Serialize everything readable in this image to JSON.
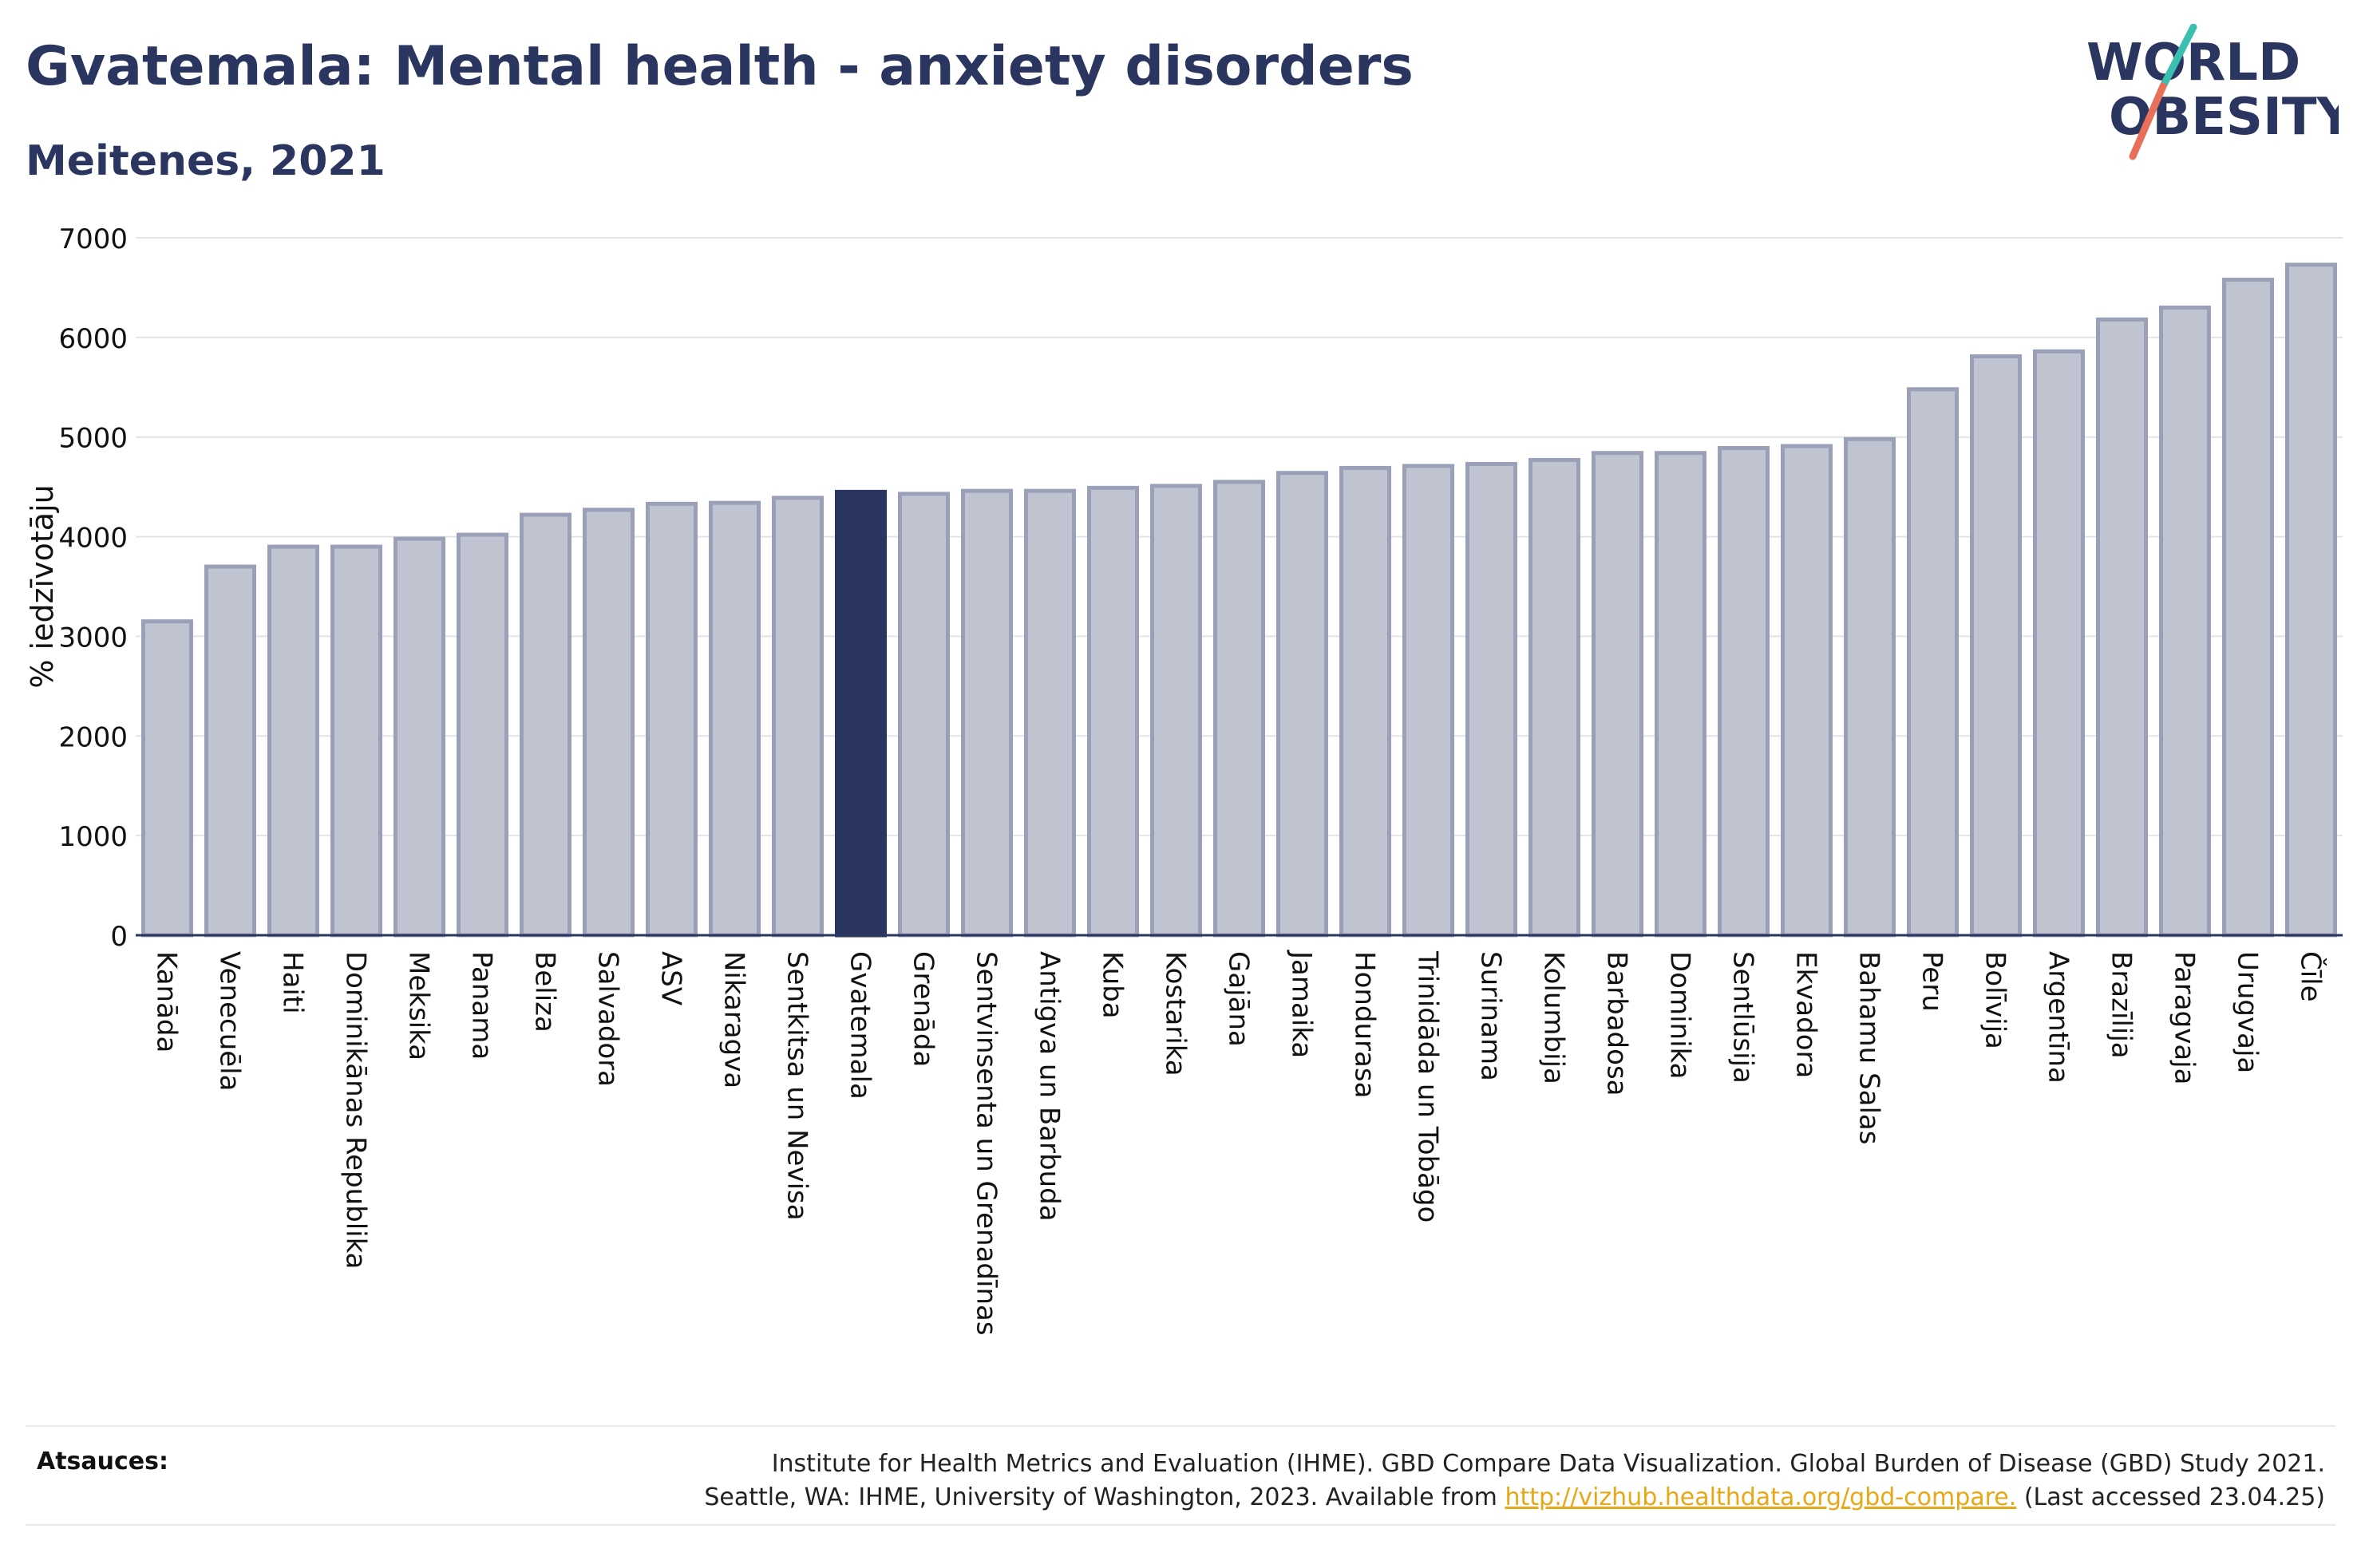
{
  "header": {
    "title": "Gvatemala: Mental health - anxiety disorders",
    "subtitle": "Meitenes, 2021"
  },
  "logo": {
    "line1": "WORLD",
    "line2": "OBESITY",
    "accent_teal": "#3bbfb0",
    "accent_coral": "#e8705a"
  },
  "colors": {
    "bar_default": "#c0c3d0",
    "bar_default_stroke": "#9aa0b8",
    "bar_highlight": "#2a3560",
    "text": "#2a3560"
  },
  "chart_data": {
    "type": "bar",
    "ylabel": "% iedzīvotāju",
    "ylim": [
      0,
      7000
    ],
    "yticks": [
      0,
      1000,
      2000,
      3000,
      4000,
      5000,
      6000,
      7000
    ],
    "grid": true,
    "highlight": "Gvatemala",
    "categories": [
      "Kanāda",
      "Venecuēla",
      "Haiti",
      "Dominikānas Republika",
      "Meksika",
      "Panama",
      "Beliza",
      "Salvadora",
      "ASV",
      "Nikaragva",
      "Sentkitsa un Nevisa",
      "Gvatemala",
      "Grenāda",
      "Sentvinsenta un Grenadīnas",
      "Antigva un Barbuda",
      "Kuba",
      "Kostarika",
      "Gajāna",
      "Jamaika",
      "Hondurasa",
      "Trinidāda un Tobāgo",
      "Surinama",
      "Kolumbija",
      "Barbadosa",
      "Dominika",
      "Sentlūsija",
      "Ekvadora",
      "Bahamu Salas",
      "Peru",
      "Bolīvija",
      "Argentīna",
      "Brazīlija",
      "Paragvaja",
      "Urugvaja",
      "Čīle"
    ],
    "values": [
      3150,
      3700,
      3900,
      3900,
      3980,
      4020,
      4220,
      4270,
      4330,
      4340,
      4390,
      4450,
      4430,
      4460,
      4460,
      4490,
      4510,
      4550,
      4640,
      4690,
      4710,
      4730,
      4770,
      4840,
      4840,
      4890,
      4910,
      4980,
      5480,
      5810,
      5860,
      6180,
      6300,
      6580,
      6730
    ]
  },
  "footer": {
    "sources_label": "Atsauces:",
    "line1": "Institute for Health Metrics and Evaluation (IHME). GBD Compare Data Visualization. Global Burden of Disease (GBD) Study 2021.",
    "line2_prefix": "Seattle, WA: IHME, University of Washington, 2023. Available from ",
    "link": "http://vizhub.healthdata.org/gbd-compare.",
    "line2_suffix": " (Last accessed 23.04.25)"
  }
}
